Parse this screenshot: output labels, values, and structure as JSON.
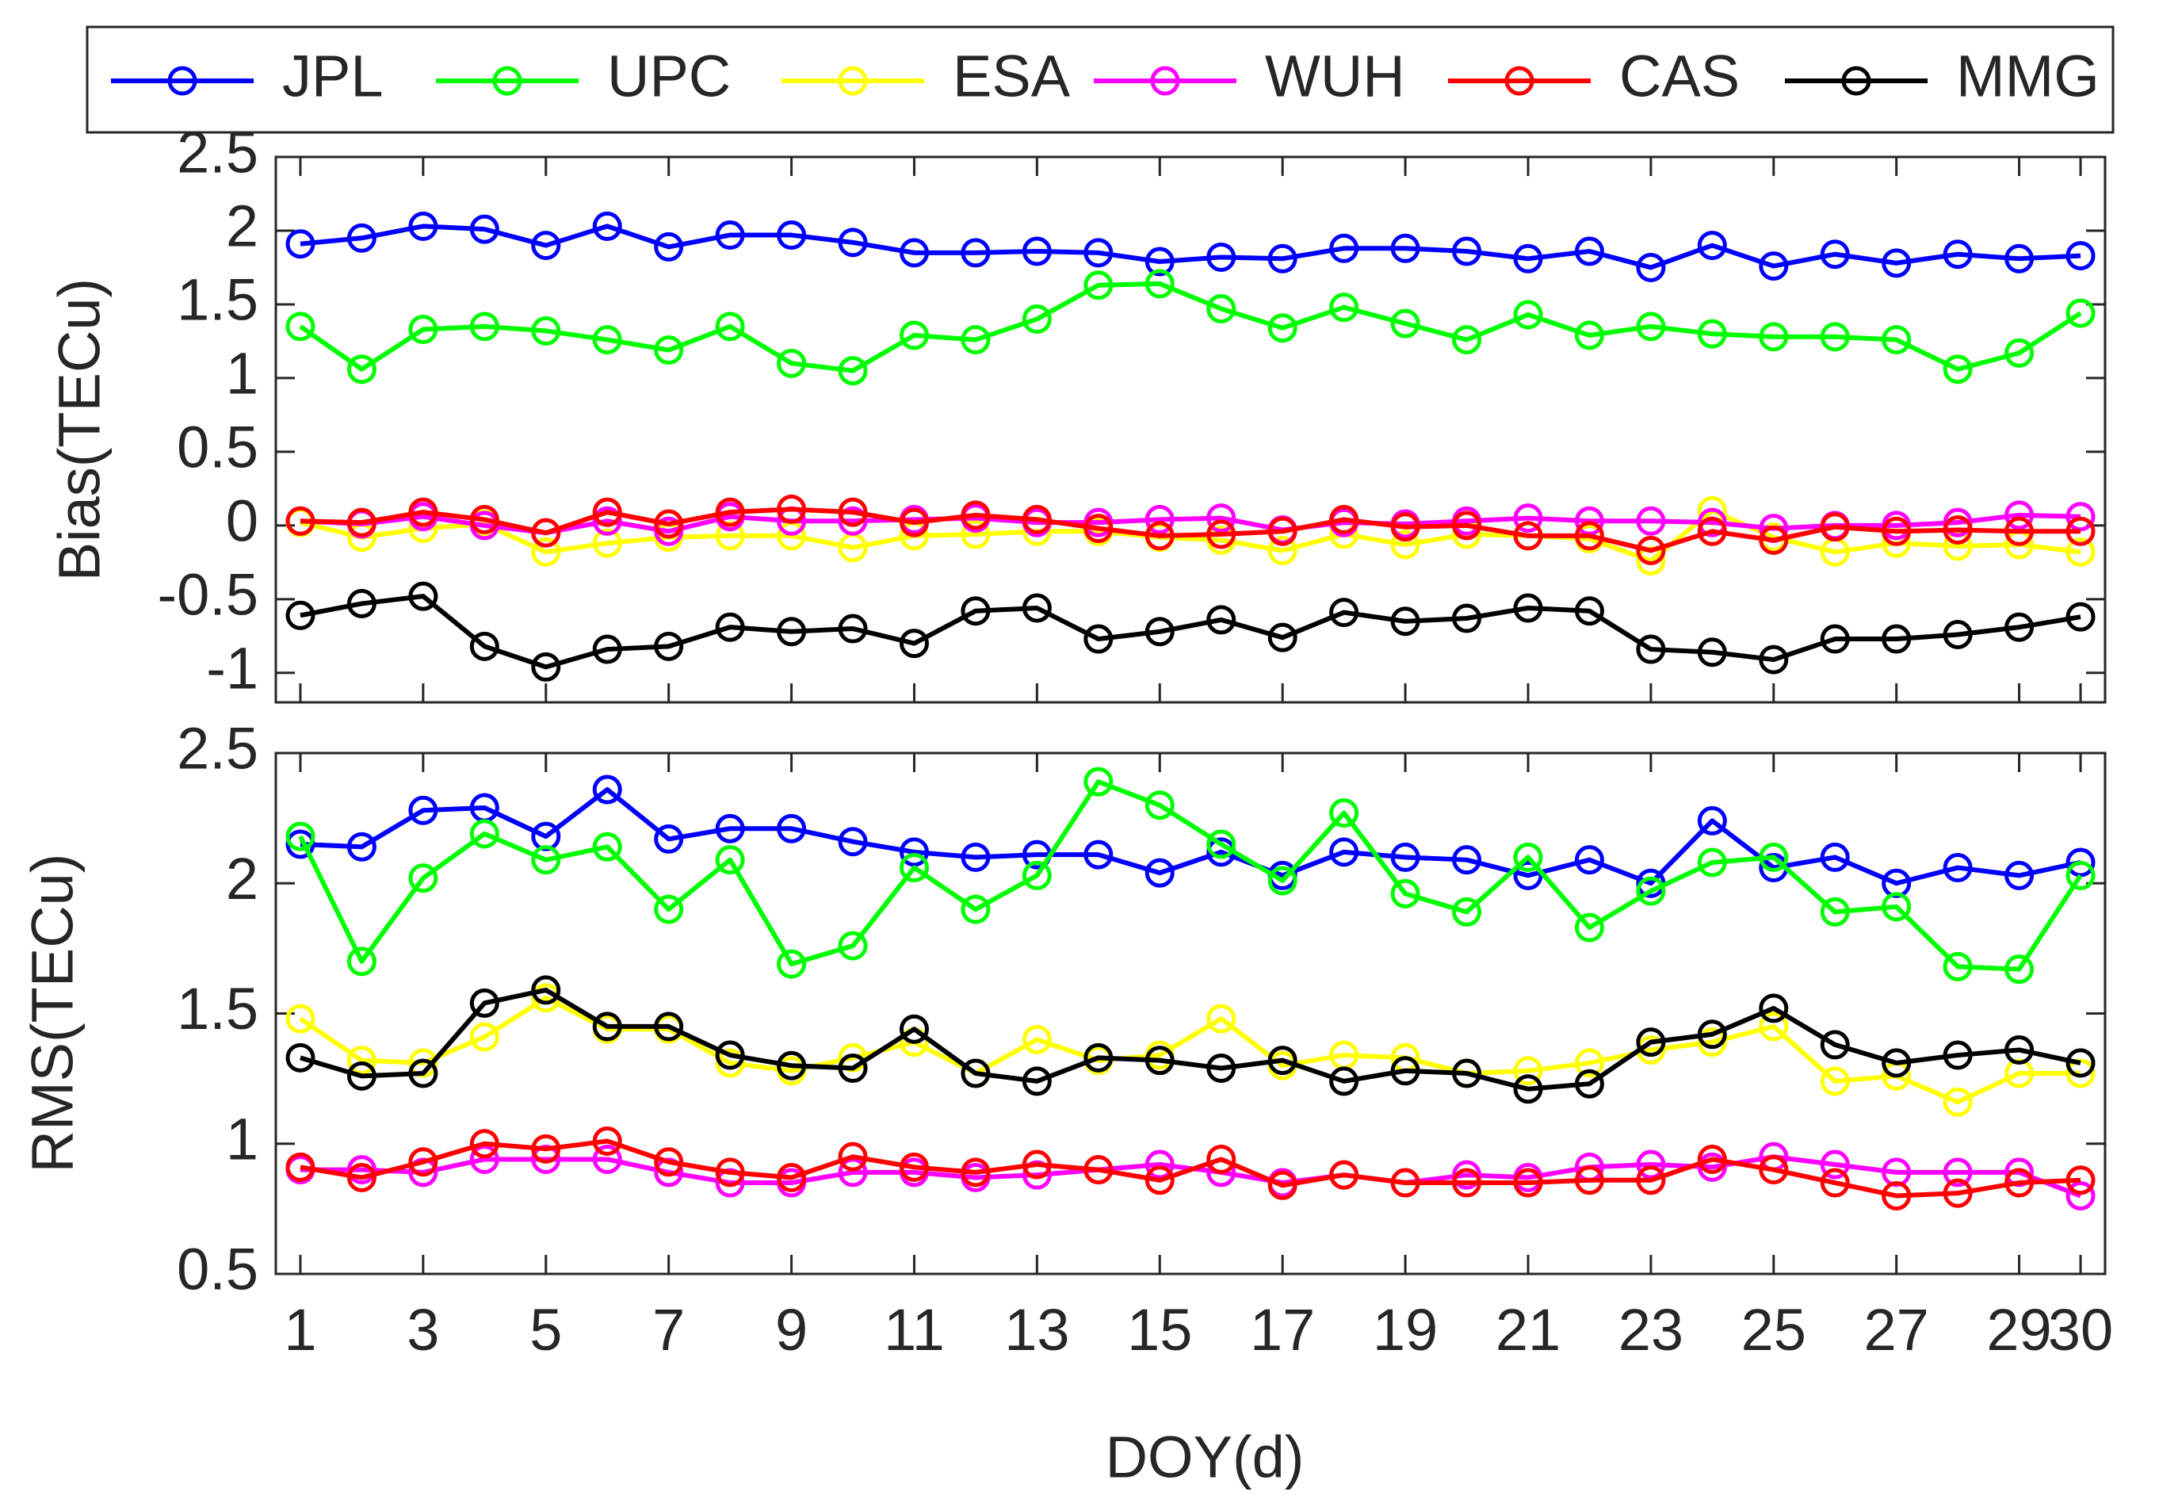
{
  "legend": {
    "entries": [
      {
        "name": "JPL",
        "color": "#0000ff"
      },
      {
        "name": "UPC",
        "color": "#00ff00"
      },
      {
        "name": "ESA",
        "color": "#ffff00"
      },
      {
        "name": "WUH",
        "color": "#ff00ff"
      },
      {
        "name": "CAS",
        "color": "#ff0000"
      },
      {
        "name": "MMG",
        "color": "#000000"
      }
    ],
    "placement": "top"
  },
  "xlabel": "DOY(d)",
  "x_ticks": [
    1,
    3,
    5,
    7,
    9,
    11,
    13,
    15,
    17,
    19,
    21,
    23,
    25,
    27,
    29,
    30
  ],
  "chart_data": [
    {
      "type": "line",
      "panel": "top",
      "ylabel": "Bias(TECu)",
      "ylim": [
        -1.2,
        2.5
      ],
      "yticks": [
        2.5,
        2,
        1.5,
        1,
        0.5,
        0,
        -0.5,
        -1
      ],
      "xlim": [
        0.6,
        30.4
      ],
      "x": [
        1,
        2,
        3,
        4,
        5,
        6,
        7,
        8,
        9,
        10,
        11,
        12,
        13,
        14,
        15,
        16,
        17,
        18,
        19,
        20,
        21,
        22,
        23,
        24,
        25,
        26,
        27,
        28,
        29,
        30
      ],
      "series": [
        {
          "name": "JPL",
          "color": "#0000ff",
          "values": [
            1.91,
            1.95,
            2.03,
            2.01,
            1.9,
            2.03,
            1.89,
            1.97,
            1.97,
            1.92,
            1.85,
            1.85,
            1.86,
            1.85,
            1.79,
            1.82,
            1.81,
            1.88,
            1.88,
            1.86,
            1.81,
            1.86,
            1.75,
            1.9,
            1.76,
            1.84,
            1.78,
            1.84,
            1.81,
            1.83
          ]
        },
        {
          "name": "UPC",
          "color": "#00ff00",
          "values": [
            1.35,
            1.06,
            1.33,
            1.35,
            1.32,
            1.26,
            1.19,
            1.35,
            1.1,
            1.05,
            1.29,
            1.26,
            1.4,
            1.63,
            1.64,
            1.47,
            1.34,
            1.48,
            1.37,
            1.26,
            1.43,
            1.29,
            1.35,
            1.3,
            1.28,
            1.28,
            1.26,
            1.06,
            1.17,
            1.44
          ]
        },
        {
          "name": "ESA",
          "color": "#ffff00",
          "values": [
            0.02,
            -0.08,
            -0.02,
            0.01,
            -0.18,
            -0.12,
            -0.08,
            -0.07,
            -0.07,
            -0.15,
            -0.07,
            -0.06,
            -0.04,
            -0.04,
            -0.08,
            -0.1,
            -0.17,
            -0.06,
            -0.13,
            -0.06,
            -0.07,
            -0.09,
            -0.24,
            0.1,
            -0.08,
            -0.18,
            -0.12,
            -0.14,
            -0.13,
            -0.18
          ]
        },
        {
          "name": "WUH",
          "color": "#ff00ff",
          "values": [
            0.03,
            0.01,
            0.06,
            0.0,
            -0.05,
            0.03,
            -0.04,
            0.06,
            0.03,
            0.03,
            0.04,
            0.05,
            0.02,
            0.02,
            0.04,
            0.05,
            -0.03,
            0.02,
            0.01,
            0.03,
            0.05,
            0.03,
            0.03,
            0.02,
            -0.02,
            0.0,
            0.0,
            0.02,
            0.07,
            0.06
          ]
        },
        {
          "name": "CAS",
          "color": "#ff0000",
          "values": [
            0.03,
            0.02,
            0.09,
            0.04,
            -0.05,
            0.09,
            0.01,
            0.09,
            0.11,
            0.09,
            0.02,
            0.07,
            0.04,
            -0.02,
            -0.07,
            -0.06,
            -0.04,
            0.04,
            -0.01,
            0.0,
            -0.07,
            -0.07,
            -0.17,
            -0.04,
            -0.1,
            -0.01,
            -0.04,
            -0.03,
            -0.04,
            -0.04
          ]
        },
        {
          "name": "MMG",
          "color": "#000000",
          "values": [
            -0.61,
            -0.53,
            -0.48,
            -0.82,
            -0.96,
            -0.84,
            -0.82,
            -0.69,
            -0.72,
            -0.7,
            -0.8,
            -0.58,
            -0.56,
            -0.77,
            -0.72,
            -0.64,
            -0.76,
            -0.59,
            -0.65,
            -0.63,
            -0.56,
            -0.58,
            -0.84,
            -0.86,
            -0.91,
            -0.77,
            -0.77,
            -0.74,
            -0.69,
            -0.62
          ]
        }
      ]
    },
    {
      "type": "line",
      "panel": "bottom",
      "ylabel": "RMS(TECu)",
      "ylim": [
        0.5,
        2.5
      ],
      "yticks": [
        2.5,
        2,
        1.5,
        1,
        0.5
      ],
      "xlim": [
        0.6,
        30.4
      ],
      "x": [
        1,
        2,
        3,
        4,
        5,
        6,
        7,
        8,
        9,
        10,
        11,
        12,
        13,
        14,
        15,
        16,
        17,
        18,
        19,
        20,
        21,
        22,
        23,
        24,
        25,
        26,
        27,
        28,
        29,
        30
      ],
      "series": [
        {
          "name": "JPL",
          "color": "#0000ff",
          "values": [
            2.15,
            2.14,
            2.28,
            2.29,
            2.18,
            2.36,
            2.17,
            2.21,
            2.21,
            2.16,
            2.12,
            2.1,
            2.11,
            2.11,
            2.04,
            2.12,
            2.03,
            2.12,
            2.1,
            2.09,
            2.03,
            2.09,
            2.0,
            2.24,
            2.06,
            2.1,
            2.0,
            2.06,
            2.03,
            2.08
          ]
        },
        {
          "name": "UPC",
          "color": "#00ff00",
          "values": [
            2.18,
            1.7,
            2.02,
            2.19,
            2.09,
            2.14,
            1.9,
            2.09,
            1.69,
            1.76,
            2.06,
            1.9,
            2.03,
            2.39,
            2.3,
            2.15,
            2.01,
            2.27,
            1.96,
            1.89,
            2.1,
            1.83,
            1.97,
            2.08,
            2.1,
            1.89,
            1.91,
            1.68,
            1.67,
            2.03
          ]
        },
        {
          "name": "ESA",
          "color": "#ffff00",
          "values": [
            1.48,
            1.32,
            1.31,
            1.41,
            1.56,
            1.44,
            1.44,
            1.31,
            1.28,
            1.33,
            1.39,
            1.27,
            1.4,
            1.32,
            1.34,
            1.48,
            1.3,
            1.34,
            1.33,
            1.27,
            1.28,
            1.31,
            1.36,
            1.39,
            1.45,
            1.24,
            1.26,
            1.16,
            1.27,
            1.27
          ]
        },
        {
          "name": "WUH",
          "color": "#ff00ff",
          "values": [
            0.9,
            0.9,
            0.89,
            0.94,
            0.94,
            0.94,
            0.89,
            0.85,
            0.85,
            0.89,
            0.89,
            0.87,
            0.88,
            0.9,
            0.92,
            0.89,
            0.85,
            0.88,
            0.85,
            0.88,
            0.87,
            0.91,
            0.92,
            0.91,
            0.95,
            0.92,
            0.89,
            0.89,
            0.89,
            0.8
          ]
        },
        {
          "name": "CAS",
          "color": "#ff0000",
          "values": [
            0.91,
            0.87,
            0.93,
            1.0,
            0.98,
            1.01,
            0.93,
            0.89,
            0.87,
            0.95,
            0.91,
            0.89,
            0.92,
            0.9,
            0.86,
            0.94,
            0.84,
            0.88,
            0.85,
            0.85,
            0.85,
            0.86,
            0.86,
            0.94,
            0.9,
            0.85,
            0.8,
            0.81,
            0.85,
            0.86
          ]
        },
        {
          "name": "MMG",
          "color": "#000000",
          "values": [
            1.33,
            1.26,
            1.27,
            1.54,
            1.59,
            1.45,
            1.45,
            1.34,
            1.3,
            1.29,
            1.44,
            1.27,
            1.24,
            1.33,
            1.32,
            1.29,
            1.32,
            1.24,
            1.28,
            1.27,
            1.21,
            1.23,
            1.39,
            1.42,
            1.52,
            1.38,
            1.31,
            1.34,
            1.36,
            1.31
          ]
        }
      ]
    }
  ]
}
